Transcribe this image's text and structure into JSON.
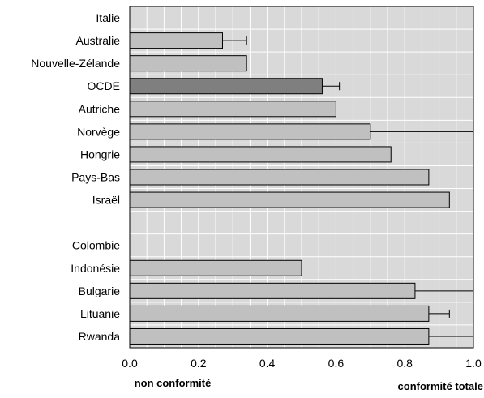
{
  "chart_data": {
    "type": "bar",
    "orientation": "horizontal",
    "categories": [
      "Italie",
      "Australie",
      "Nouvelle-Zélande",
      "OCDE",
      "Autriche",
      "Norvège",
      "Hongrie",
      "Pays-Bas",
      "Israël",
      "",
      "Colombie",
      "Indonésie",
      "Bulgarie",
      "Lituanie",
      "Rwanda"
    ],
    "values": [
      null,
      0.27,
      0.34,
      0.56,
      0.6,
      0.7,
      0.76,
      0.87,
      0.93,
      null,
      null,
      0.5,
      0.83,
      0.87,
      0.87
    ],
    "error_upper": [
      null,
      0.34,
      null,
      0.61,
      null,
      1.0,
      null,
      null,
      null,
      null,
      null,
      null,
      1.0,
      0.93,
      1.0
    ],
    "highlight_category": "OCDE",
    "colors": {
      "bar": "#c0c0c0",
      "highlight": "#7f7f7f",
      "plot_bg": "#d9d9d9",
      "grid": "#ffffff"
    },
    "xlim": [
      0.0,
      1.0
    ],
    "xticks": [
      "0.0",
      "0.2",
      "0.4",
      "0.6",
      "0.8",
      "1.0"
    ],
    "grid": true,
    "axis_notes": {
      "left": "non conformité",
      "right": "conformité totale"
    }
  }
}
